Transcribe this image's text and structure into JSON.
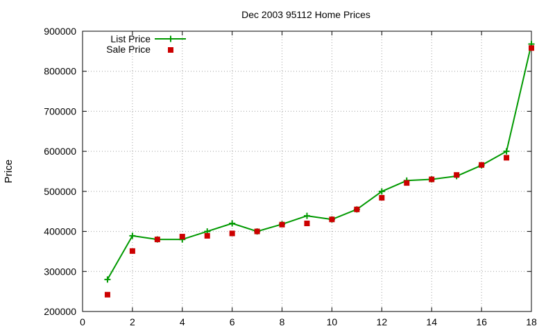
{
  "chart_data": {
    "type": "line",
    "title": "Dec 2003 95112 Home Prices",
    "xlabel": "",
    "ylabel": "Price",
    "xlim": [
      0,
      18
    ],
    "ylim": [
      200000,
      900000
    ],
    "x_ticks": [
      0,
      2,
      4,
      6,
      8,
      10,
      12,
      14,
      16,
      18
    ],
    "x_tick_labels": [
      "0",
      "2",
      "4",
      "6",
      "8",
      "10",
      "12",
      "14",
      "16",
      "18"
    ],
    "y_ticks": [
      200000,
      300000,
      400000,
      500000,
      600000,
      700000,
      800000,
      900000
    ],
    "y_tick_labels": [
      "200000",
      "300000",
      "400000",
      "500000",
      "600000",
      "700000",
      "800000",
      "900000"
    ],
    "grid": true,
    "legend_position": "top-left",
    "x": [
      1,
      2,
      3,
      4,
      5,
      6,
      7,
      8,
      9,
      10,
      11,
      12,
      13,
      14,
      15,
      16,
      17,
      18
    ],
    "series": [
      {
        "name": "List Price",
        "style": "linespoints",
        "marker": "plus",
        "color": "#009900",
        "values": [
          280000,
          389000,
          380000,
          380000,
          400000,
          420000,
          400000,
          418000,
          439000,
          430000,
          455000,
          500000,
          527000,
          530000,
          538000,
          565000,
          600000,
          868000
        ]
      },
      {
        "name": "Sale Price",
        "style": "points",
        "marker": "square",
        "color": "#cc0000",
        "values": [
          242000,
          351000,
          380000,
          387000,
          389000,
          395000,
          400000,
          417000,
          420000,
          430000,
          455000,
          484000,
          521000,
          530000,
          541000,
          566000,
          584000,
          858000
        ]
      }
    ]
  }
}
